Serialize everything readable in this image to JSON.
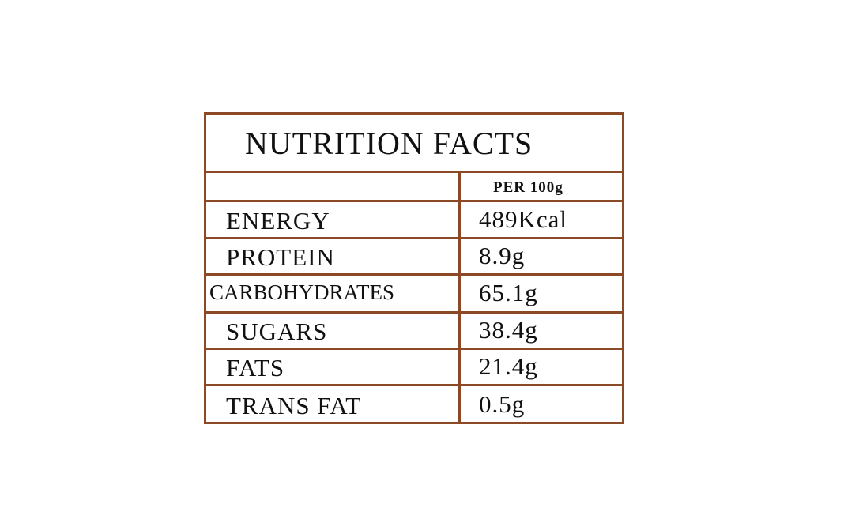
{
  "title": "NUTRITION FACTS",
  "table": {
    "column_header": "PER 100g",
    "rows": [
      [
        "ENERGY",
        "489Kcal"
      ],
      [
        "PROTEIN",
        "8.9g"
      ],
      [
        "CARBOHYDRATES",
        "65.1g"
      ],
      [
        "SUGARS",
        "38.4g"
      ],
      [
        "FATS",
        "21.4g"
      ],
      [
        "TRANS FAT",
        "0.5g"
      ]
    ]
  }
}
